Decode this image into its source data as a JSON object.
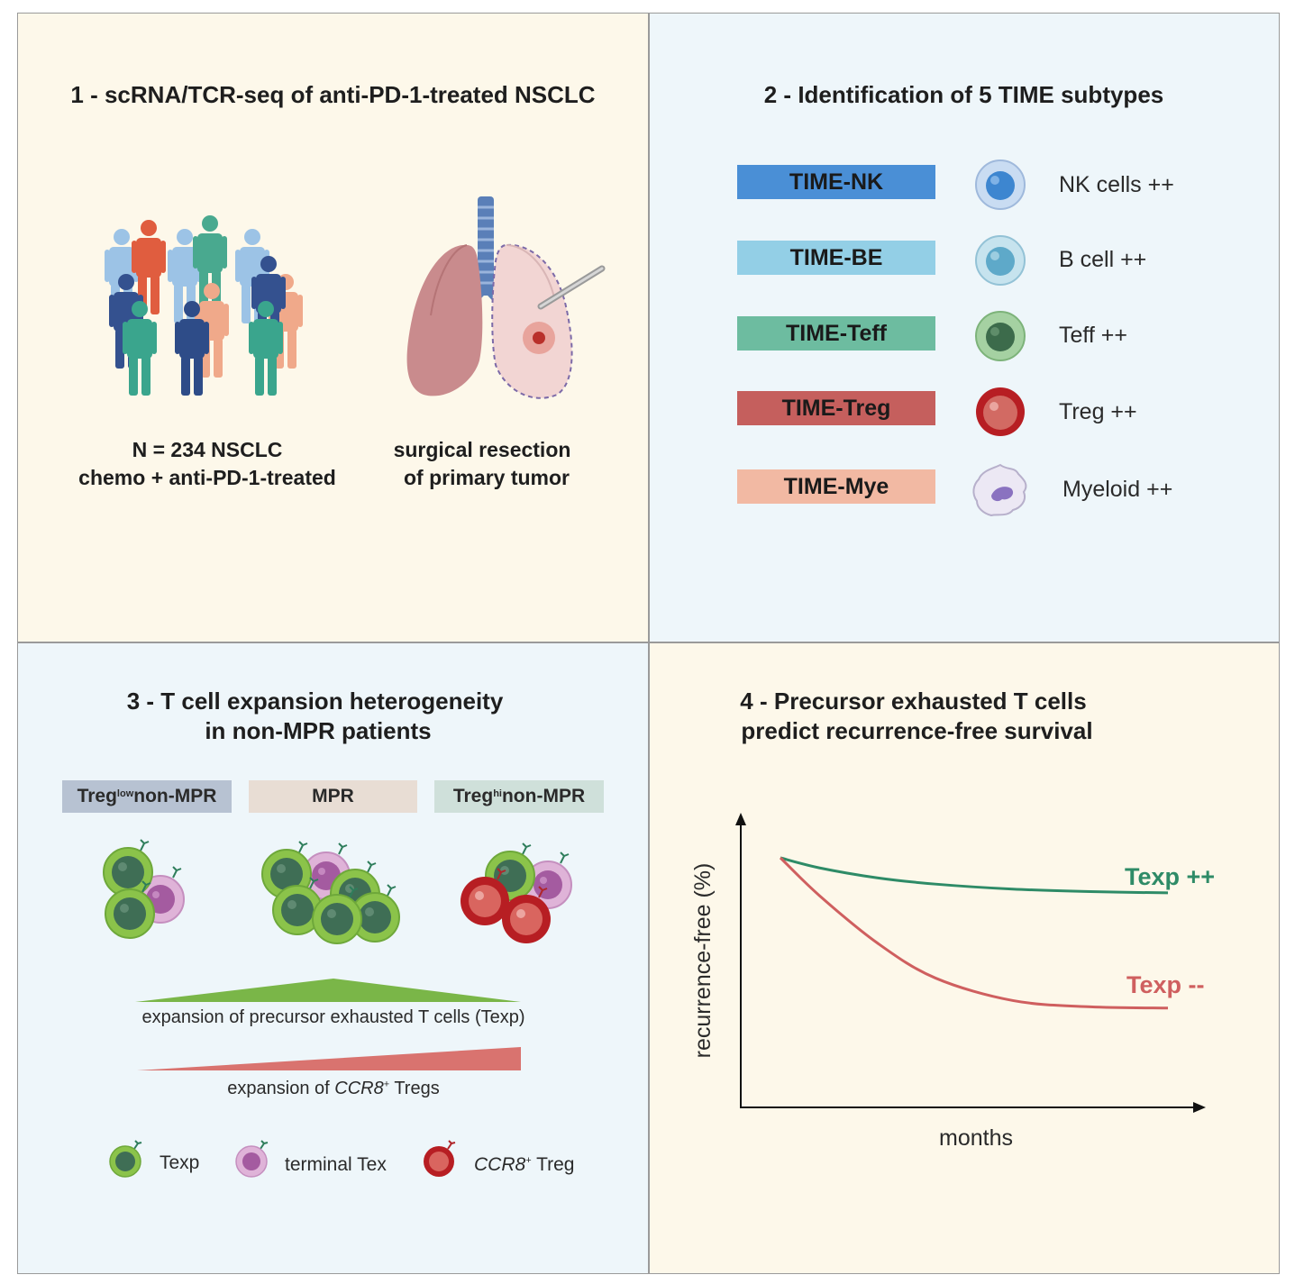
{
  "colors": {
    "panel_cream": "#fdf8ea",
    "panel_blue": "#eef6fa",
    "time_nk": "#4a8fd6",
    "time_be": "#93cfe6",
    "time_teff": "#6dbca0",
    "time_treg": "#c55f5d",
    "time_mye": "#f2b9a3",
    "texp_green": "#2e8b67",
    "texp_red": "#cf5f5f"
  },
  "panel1": {
    "title": "1 - scRNA/TCR-seq of anti-PD-1-treated NSCLC",
    "cohort_line1": "N = 234 NSCLC",
    "cohort_line2": "chemo + anti-PD-1-treated",
    "surgery_line1": "surgical resection",
    "surgery_line2": "of primary tumor"
  },
  "panel2": {
    "title": "2 - Identification of 5 TIME subtypes",
    "subtypes": [
      {
        "label": "TIME-NK",
        "cell": "NK cells ++",
        "icon": "nk-cell-icon"
      },
      {
        "label": "TIME-BE",
        "cell": "B cell ++",
        "icon": "b-cell-icon"
      },
      {
        "label": "TIME-Teff",
        "cell": "Teff ++",
        "icon": "teff-cell-icon"
      },
      {
        "label": "TIME-Treg",
        "cell": "Treg ++",
        "icon": "treg-cell-icon"
      },
      {
        "label": "TIME-Mye",
        "cell": "Myeloid ++",
        "icon": "myeloid-cell-icon"
      }
    ]
  },
  "panel3": {
    "title_line1": "3 - T cell expansion heterogeneity",
    "title_line2": "in non-MPR patients",
    "groups": [
      {
        "prefix": "Treg",
        "sup": "low",
        "suffix": " non-MPR"
      },
      {
        "prefix": "MPR",
        "sup": "",
        "suffix": ""
      },
      {
        "prefix": "Treg",
        "sup": "hi",
        "suffix": " non-MPR"
      }
    ],
    "texp_caption": "expansion of precursor exhausted T cells (Texp)",
    "ccr8_prefix": "expansion of ",
    "ccr8_italic": "CCR8",
    "ccr8_sup": "+",
    "ccr8_suffix": " Tregs",
    "legend": {
      "texp": "Texp",
      "tex": "terminal Tex",
      "treg_italic": "CCR8",
      "treg_sup": "+",
      "treg_suffix": " Treg"
    }
  },
  "panel4": {
    "title_line1": "4 - Precursor exhausted T cells",
    "title_line2": "predict recurrence-free survival"
  },
  "chart_data": {
    "type": "line",
    "xlabel": "months",
    "ylabel": "recurrence-free (%)",
    "series": [
      {
        "name": "Texp ++",
        "x": [
          0,
          0.1,
          0.25,
          0.4,
          0.6,
          0.8,
          1.0
        ],
        "values": [
          1.0,
          0.96,
          0.92,
          0.895,
          0.875,
          0.865,
          0.86
        ]
      },
      {
        "name": "Texp --",
        "x": [
          0,
          0.1,
          0.25,
          0.4,
          0.6,
          0.8,
          1.0
        ],
        "values": [
          1.0,
          0.85,
          0.66,
          0.52,
          0.43,
          0.405,
          0.4
        ]
      }
    ]
  }
}
